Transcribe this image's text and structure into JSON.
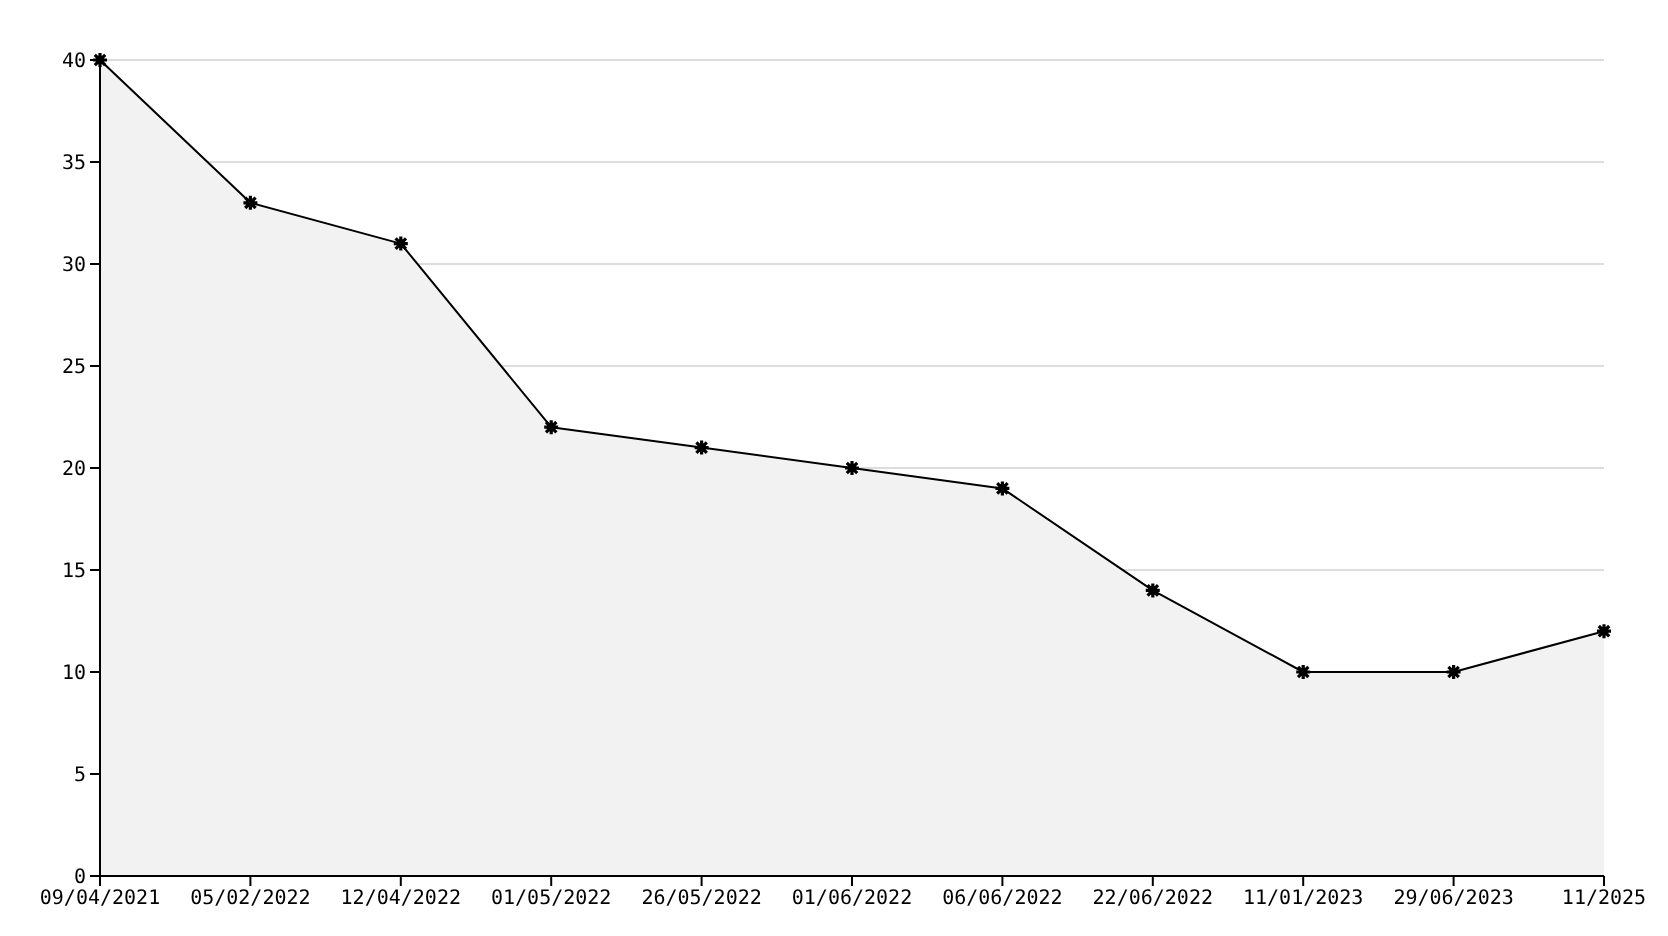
{
  "chart_data": {
    "type": "area",
    "categories": [
      "09/04/2021",
      "05/02/2022",
      "12/04/2022",
      "01/05/2022",
      "26/05/2022",
      "01/06/2022",
      "06/06/2022",
      "22/06/2022",
      "11/01/2023",
      "29/06/2023",
      "11/2025"
    ],
    "series": [
      {
        "color": "#000000",
        "values": [
          40,
          33,
          31,
          22,
          21,
          20,
          19,
          14,
          10,
          10,
          12
        ]
      }
    ],
    "ylim": [
      0,
      40
    ],
    "yticks": [
      0,
      5,
      10,
      15,
      20,
      25,
      30,
      35,
      40
    ],
    "grid": "y",
    "marker": "cross",
    "line_style": "solid",
    "legend": false
  }
}
